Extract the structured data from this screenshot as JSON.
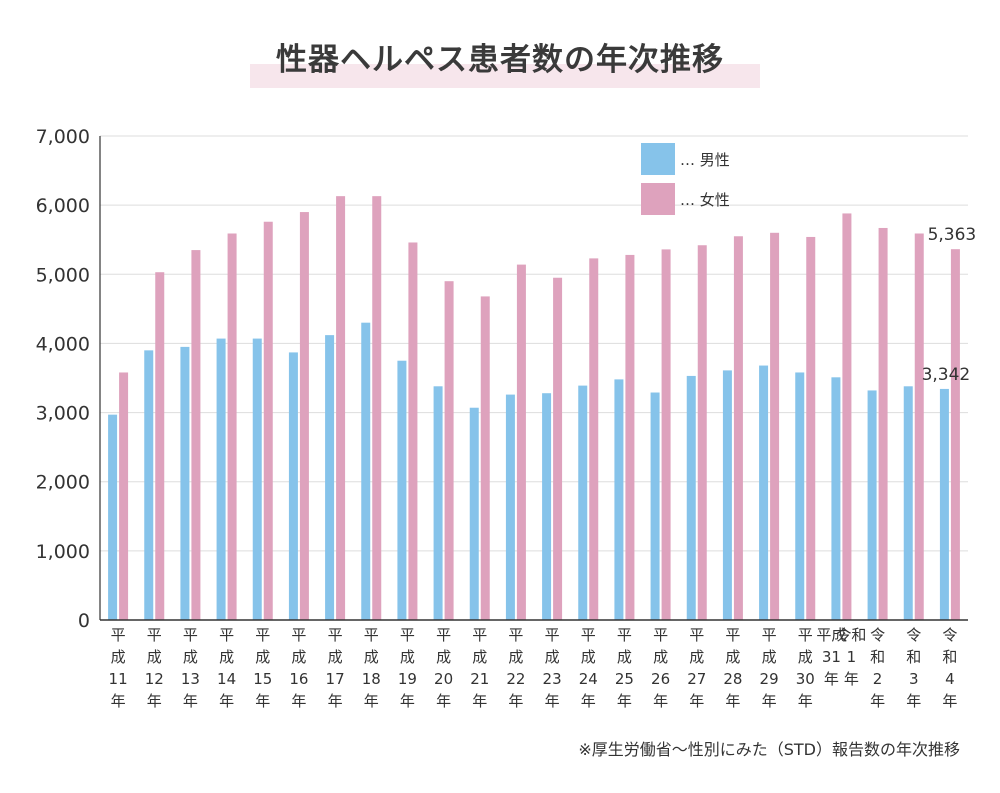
{
  "colors": {
    "male": "#86c3ea",
    "female": "#dea2bd",
    "title_band": "#f7e6ec",
    "axis": "#333333"
  },
  "chart_data": {
    "type": "bar",
    "title": "性器ヘルペス患者数の年次推移",
    "categories": [
      "平成11年",
      "平成12年",
      "平成13年",
      "平成14年",
      "平成15年",
      "平成16年",
      "平成17年",
      "平成18年",
      "平成19年",
      "平成20年",
      "平成21年",
      "平成22年",
      "平成23年",
      "平成24年",
      "平成25年",
      "平成26年",
      "平成27年",
      "平成28年",
      "平成29年",
      "平成30年",
      "平成31年令和1年",
      "令和2年",
      "令和3年",
      "令和4年"
    ],
    "category_lines": [
      [
        "平",
        "成",
        "11",
        "年"
      ],
      [
        "平",
        "成",
        "12",
        "年"
      ],
      [
        "平",
        "成",
        "13",
        "年"
      ],
      [
        "平",
        "成",
        "14",
        "年"
      ],
      [
        "平",
        "成",
        "15",
        "年"
      ],
      [
        "平",
        "成",
        "16",
        "年"
      ],
      [
        "平",
        "成",
        "17",
        "年"
      ],
      [
        "平",
        "成",
        "18",
        "年"
      ],
      [
        "平",
        "成",
        "19",
        "年"
      ],
      [
        "平",
        "成",
        "20",
        "年"
      ],
      [
        "平",
        "成",
        "21",
        "年"
      ],
      [
        "平",
        "成",
        "22",
        "年"
      ],
      [
        "平",
        "成",
        "23",
        "年"
      ],
      [
        "平",
        "成",
        "24",
        "年"
      ],
      [
        "平",
        "成",
        "25",
        "年"
      ],
      [
        "平",
        "成",
        "26",
        "年"
      ],
      [
        "平",
        "成",
        "27",
        "年"
      ],
      [
        "平",
        "成",
        "28",
        "年"
      ],
      [
        "平",
        "成",
        "29",
        "年"
      ],
      [
        "平",
        "成",
        "30",
        "年"
      ],
      [
        "平成31",
        "令和1",
        "年"
      ],
      [
        "令",
        "和",
        "2",
        "年"
      ],
      [
        "令",
        "和",
        "3",
        "年"
      ],
      [
        "令",
        "和",
        "4",
        "年"
      ]
    ],
    "series": [
      {
        "name": "… 男性",
        "key": "male",
        "values": [
          2970,
          3900,
          3950,
          4070,
          4070,
          3870,
          4120,
          4300,
          3750,
          3380,
          3070,
          3260,
          3280,
          3390,
          3480,
          3290,
          3530,
          3610,
          3680,
          3580,
          3510,
          3320,
          3380,
          3342
        ]
      },
      {
        "name": "… 女性",
        "key": "female",
        "values": [
          3580,
          5030,
          5350,
          5590,
          5760,
          5900,
          6130,
          6130,
          5460,
          4900,
          4680,
          5140,
          4950,
          5230,
          5280,
          5360,
          5420,
          5550,
          5600,
          5540,
          5880,
          5670,
          5590,
          5363
        ]
      }
    ],
    "ylim": [
      0,
      7000
    ],
    "yticks": [
      0,
      1000,
      2000,
      3000,
      4000,
      5000,
      6000,
      7000
    ],
    "ytick_labels": [
      "0",
      "1,000",
      "2,000",
      "3,000",
      "4,000",
      "5,000",
      "6,000",
      "7,000"
    ],
    "grid": true,
    "legend": "top-right",
    "data_labels": [
      {
        "series": "male",
        "index": 23,
        "text": "3,342"
      },
      {
        "series": "female",
        "index": 23,
        "text": "5,363"
      }
    ]
  },
  "footer": {
    "source": "※厚生労働省〜性別にみた（STD）報告数の年次推移"
  }
}
